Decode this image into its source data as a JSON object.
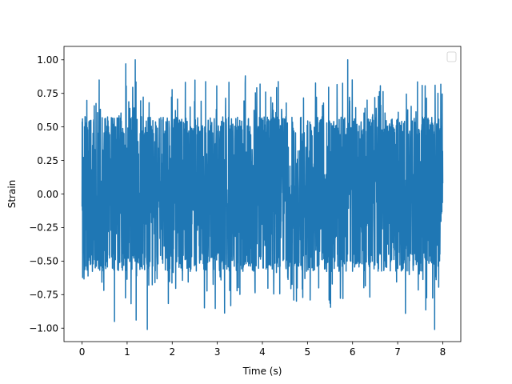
{
  "chart_data": {
    "type": "line",
    "title": "",
    "xlabel": "Time (s)",
    "ylabel": "Strain",
    "xlim": [
      -0.4,
      8.4
    ],
    "ylim": [
      -1.1,
      1.1
    ],
    "xticks": [
      0,
      1,
      2,
      3,
      4,
      5,
      6,
      7,
      8
    ],
    "xtick_labels": [
      "0",
      "1",
      "2",
      "3",
      "4",
      "5",
      "6",
      "7",
      "8"
    ],
    "yticks": [
      1.0,
      0.75,
      0.5,
      0.25,
      0.0,
      -0.25,
      -0.5,
      -0.75,
      -1.0
    ],
    "ytick_labels": [
      "1.00",
      "0.75",
      "0.50",
      "0.25",
      "0.00",
      "−0.25",
      "−0.50",
      "−0.75",
      "−1.00"
    ],
    "grid": false,
    "legend": {
      "placement": "top-right",
      "entries": []
    },
    "series": [
      {
        "color": "#1f77b4",
        "x_range": [
          0,
          8
        ],
        "typical_envelope": [
          -0.55,
          0.55
        ],
        "peak_max": 1.0,
        "peak_min": -1.01,
        "notable_peaks": [
          {
            "x": 1.18,
            "y": 1.0
          },
          {
            "x": 0.97,
            "y": 0.97
          },
          {
            "x": 7.82,
            "y": -1.01
          },
          {
            "x": 0.72,
            "y": -0.95
          },
          {
            "x": 1.2,
            "y": -0.94
          }
        ]
      }
    ]
  }
}
